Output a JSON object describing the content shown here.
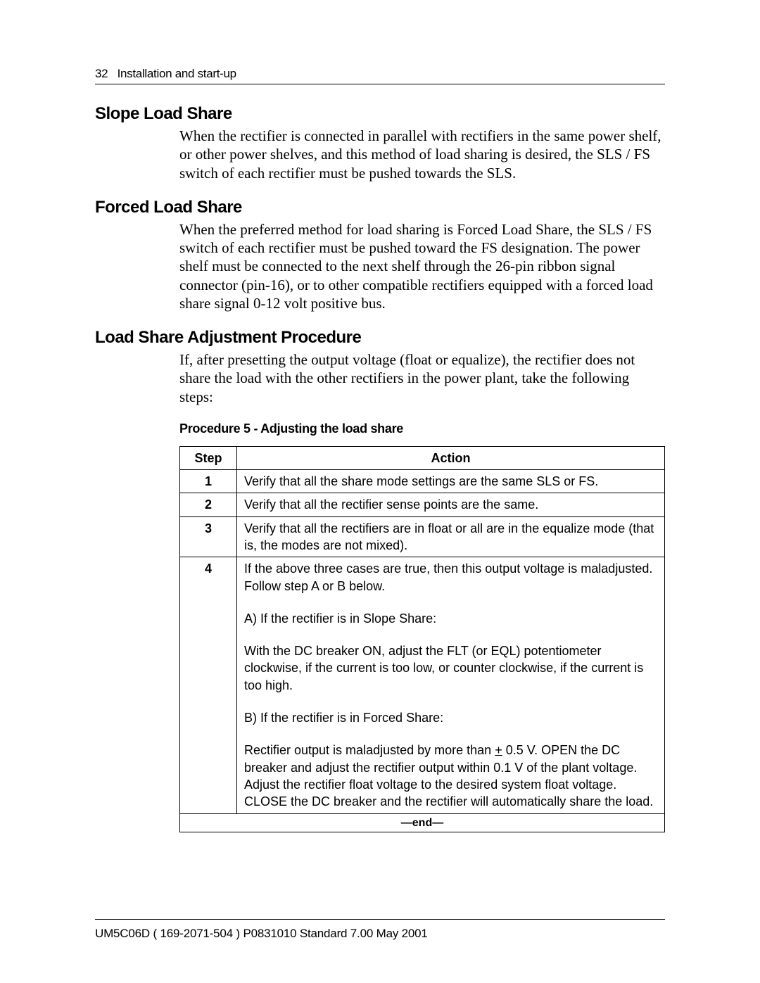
{
  "header": {
    "page_number": "32",
    "chapter": "Installation and start-up"
  },
  "sections": [
    {
      "heading": "Slope Load Share",
      "body": "When the rectifier is connected in parallel with rectifiers in the same power shelf, or other power shelves, and this method of load sharing is desired, the SLS / FS switch of each rectifier must be pushed towards the SLS."
    },
    {
      "heading": "Forced Load Share",
      "body": "When the preferred method for load sharing is Forced Load Share, the SLS / FS switch of each rectifier must be pushed toward the FS designation. The power shelf must be connected to the next shelf through the 26-pin ribbon signal connector (pin-16), or to other compatible rectifiers equipped with a forced load share signal 0-12 volt positive bus."
    },
    {
      "heading": "Load Share Adjustment Procedure",
      "body": "If, after presetting the output voltage (float or equalize), the rectifier does not share the load with the other rectifiers in the power plant, take the following steps:"
    }
  ],
  "procedure": {
    "title": "Procedure 5 - Adjusting the load share",
    "columns": [
      "Step",
      "Action"
    ],
    "rows": [
      {
        "step": "1",
        "action": "Verify that all the share mode settings are the same SLS or FS."
      },
      {
        "step": "2",
        "action": "Verify that all the rectifier sense points are the same."
      },
      {
        "step": "3",
        "action": "Verify that all the rectifiers are in float or all are in the equalize mode (that is, the modes are not mixed)."
      }
    ],
    "row4": {
      "step": "4",
      "lines": {
        "l1": "If the above three cases are true, then this output voltage is maladjusted.",
        "l2": "Follow step A or B below.",
        "l3": "A) If the rectifier is in Slope Share:",
        "l4": "With the DC breaker ON, adjust the FLT (or EQL) potentiometer clockwise, if the current is too low, or counter  clockwise, if the current is too high.",
        "l5": "B) If the rectifier is in Forced Share:",
        "l6a": "Rectifier output is maladjusted by more than ",
        "l6_pm": "+",
        "l6b": " 0.5 V. OPEN the DC breaker and adjust the rectifier output within 0.1 V of the plant voltage. Adjust the rectifier float voltage to the desired system float voltage. CLOSE the DC breaker and the rectifier will automatically share the load."
      }
    },
    "end_label": "—end—"
  },
  "footer": {
    "text": "UM5C06D  ( 169-2071-504 )  P0831010  Standard 7.00  May 2001"
  }
}
